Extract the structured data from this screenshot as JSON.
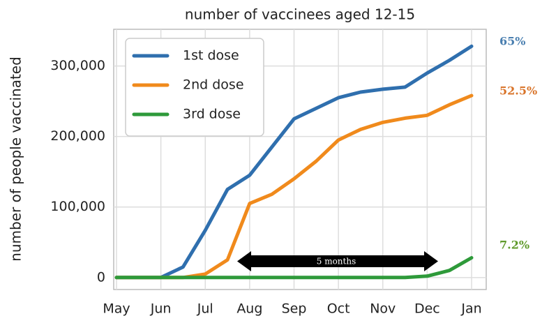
{
  "chart_data": {
    "type": "line",
    "title": "number of vaccinees aged 12-15",
    "y_label": "number of people vaccinated",
    "categories": [
      "May",
      null,
      "Jun",
      null,
      "Jul",
      null,
      "Aug",
      null,
      "Sep",
      null,
      "Oct",
      null,
      "Nov",
      null,
      "Dec",
      null,
      "Jan"
    ],
    "series": [
      {
        "name": "1st dose",
        "color": "#2f6fae",
        "values": [
          0,
          0,
          0,
          15000,
          67000,
          125000,
          145000,
          185000,
          225000,
          240000,
          255000,
          263000,
          267000,
          270000,
          290000,
          308000,
          328000
        ]
      },
      {
        "name": "2nd dose",
        "color": "#f08a1c",
        "values": [
          0,
          0,
          0,
          0,
          5000,
          25000,
          105000,
          118000,
          140000,
          165000,
          195000,
          210000,
          220000,
          226000,
          230000,
          245000,
          258000
        ]
      },
      {
        "name": "3rd dose",
        "color": "#2e9a3a",
        "values": [
          0,
          0,
          0,
          0,
          0,
          0,
          0,
          0,
          0,
          0,
          0,
          0,
          0,
          0,
          2000,
          10000,
          28000
        ]
      }
    ],
    "ylim": [
      -17000,
      352000
    ],
    "yticks": [
      0,
      {
        "value": 100000,
        "label": "100,000"
      },
      {
        "value": 200000,
        "label": "200,000"
      },
      {
        "value": 300000,
        "label": "300,000"
      }
    ],
    "grid": true,
    "legend": "upper left",
    "annotations": [
      {
        "text": "65%",
        "color": "#4a7fb0"
      },
      {
        "text": "52.5%",
        "color": "#d9742a"
      },
      {
        "text": "7.2%",
        "color": "#5f9a2a"
      },
      {
        "text": "5 months",
        "color": "#ffffff"
      }
    ]
  }
}
